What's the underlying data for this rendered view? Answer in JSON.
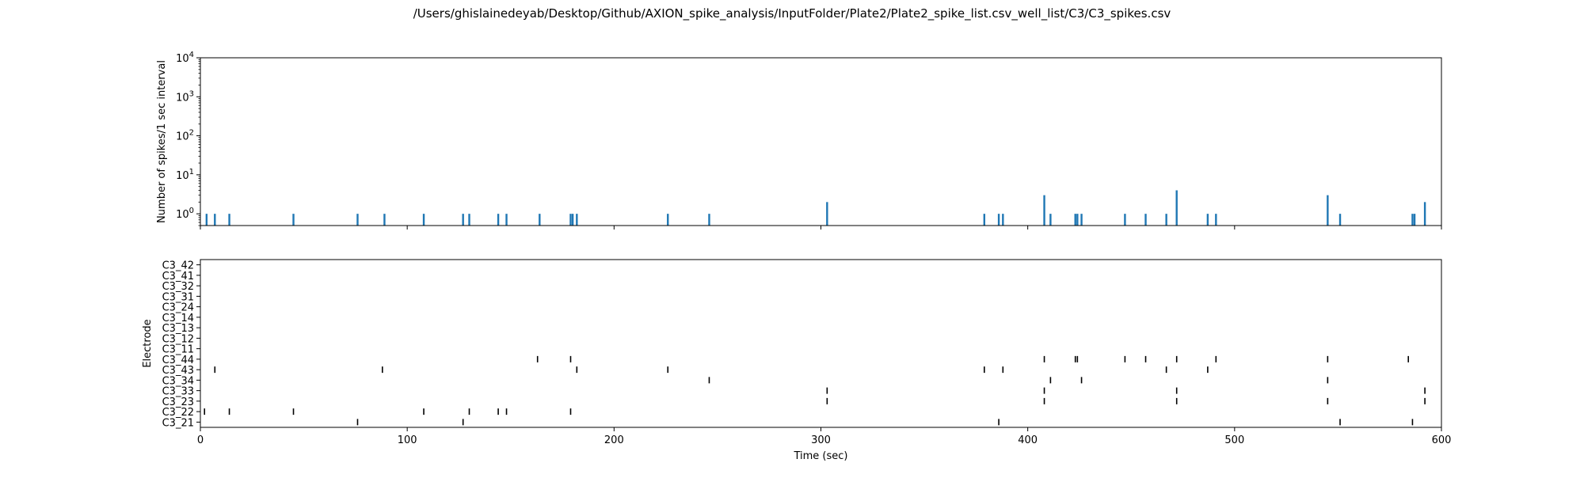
{
  "figure": {
    "title": "/Users/ghislainedeyab/Desktop/Github/AXION_spike_analysis/InputFolder/Plate2/Plate2_spike_list.csv_well_list/C3/C3_spikes.csv"
  },
  "colors": {
    "histogram": "#1f77b4",
    "raster": "#000000",
    "axes": "#000000"
  },
  "chart_data": [
    {
      "type": "bar",
      "title": "",
      "xlabel": "",
      "ylabel": "Number of spikes/1 sec interval",
      "xlim": [
        0,
        600
      ],
      "ylim": [
        0.5,
        10000
      ],
      "yscale": "log",
      "grid": false,
      "legend": "none",
      "yticks": [
        1,
        10,
        100,
        1000,
        10000
      ],
      "ytick_labels": [
        {
          "base": "10",
          "exp": "0"
        },
        {
          "base": "10",
          "exp": "1"
        },
        {
          "base": "10",
          "exp": "2"
        },
        {
          "base": "10",
          "exp": "3"
        },
        {
          "base": "10",
          "exp": "4"
        }
      ],
      "xticks": [
        0,
        100,
        200,
        300,
        400,
        500,
        600
      ],
      "bars": [
        {
          "x": 3,
          "y": 1
        },
        {
          "x": 7,
          "y": 1
        },
        {
          "x": 14,
          "y": 1
        },
        {
          "x": 45,
          "y": 1
        },
        {
          "x": 76,
          "y": 1
        },
        {
          "x": 89,
          "y": 1
        },
        {
          "x": 108,
          "y": 1
        },
        {
          "x": 127,
          "y": 1
        },
        {
          "x": 130,
          "y": 1
        },
        {
          "x": 144,
          "y": 1
        },
        {
          "x": 148,
          "y": 1
        },
        {
          "x": 164,
          "y": 1
        },
        {
          "x": 179,
          "y": 1
        },
        {
          "x": 180,
          "y": 1
        },
        {
          "x": 182,
          "y": 1
        },
        {
          "x": 226,
          "y": 1
        },
        {
          "x": 246,
          "y": 1
        },
        {
          "x": 303,
          "y": 2
        },
        {
          "x": 379,
          "y": 1
        },
        {
          "x": 386,
          "y": 1
        },
        {
          "x": 388,
          "y": 1
        },
        {
          "x": 408,
          "y": 3
        },
        {
          "x": 411,
          "y": 1
        },
        {
          "x": 423,
          "y": 1
        },
        {
          "x": 424,
          "y": 1
        },
        {
          "x": 426,
          "y": 1
        },
        {
          "x": 447,
          "y": 1
        },
        {
          "x": 457,
          "y": 1
        },
        {
          "x": 467,
          "y": 1
        },
        {
          "x": 472,
          "y": 4
        },
        {
          "x": 487,
          "y": 1
        },
        {
          "x": 491,
          "y": 1
        },
        {
          "x": 545,
          "y": 3
        },
        {
          "x": 551,
          "y": 1
        },
        {
          "x": 586,
          "y": 1
        },
        {
          "x": 587,
          "y": 1
        },
        {
          "x": 592,
          "y": 2
        }
      ]
    },
    {
      "type": "scatter",
      "subtype": "raster",
      "title": "",
      "xlabel": "Time (sec)",
      "ylabel": "Electrode",
      "xlim": [
        0,
        600
      ],
      "grid": false,
      "legend": "none",
      "xticks": [
        0,
        100,
        200,
        300,
        400,
        500,
        600
      ],
      "categories": [
        "C3_21",
        "C3_22",
        "C3_23",
        "C3_33",
        "C3_34",
        "C3_43",
        "C3_44",
        "C3_11",
        "C3_12",
        "C3_13",
        "C3_14",
        "C3_24",
        "C3_31",
        "C3_32",
        "C3_41",
        "C3_42"
      ],
      "series": [
        {
          "values": [
            76,
            127,
            386,
            551,
            586
          ]
        },
        {
          "values": [
            2,
            14,
            45,
            108,
            130,
            144,
            148,
            179
          ]
        },
        {
          "values": [
            303,
            408,
            472,
            545,
            592
          ]
        },
        {
          "values": [
            303,
            408,
            472,
            592
          ]
        },
        {
          "values": [
            246,
            411,
            426,
            545
          ]
        },
        {
          "values": [
            7,
            88,
            182,
            226,
            379,
            388,
            467,
            487
          ]
        },
        {
          "values": [
            163,
            179,
            408,
            423,
            424,
            447,
            457,
            472,
            491,
            545,
            584
          ]
        },
        {
          "values": []
        },
        {
          "values": []
        },
        {
          "values": []
        },
        {
          "values": []
        },
        {
          "values": []
        },
        {
          "values": []
        },
        {
          "values": []
        },
        {
          "values": []
        },
        {
          "values": []
        }
      ]
    }
  ]
}
